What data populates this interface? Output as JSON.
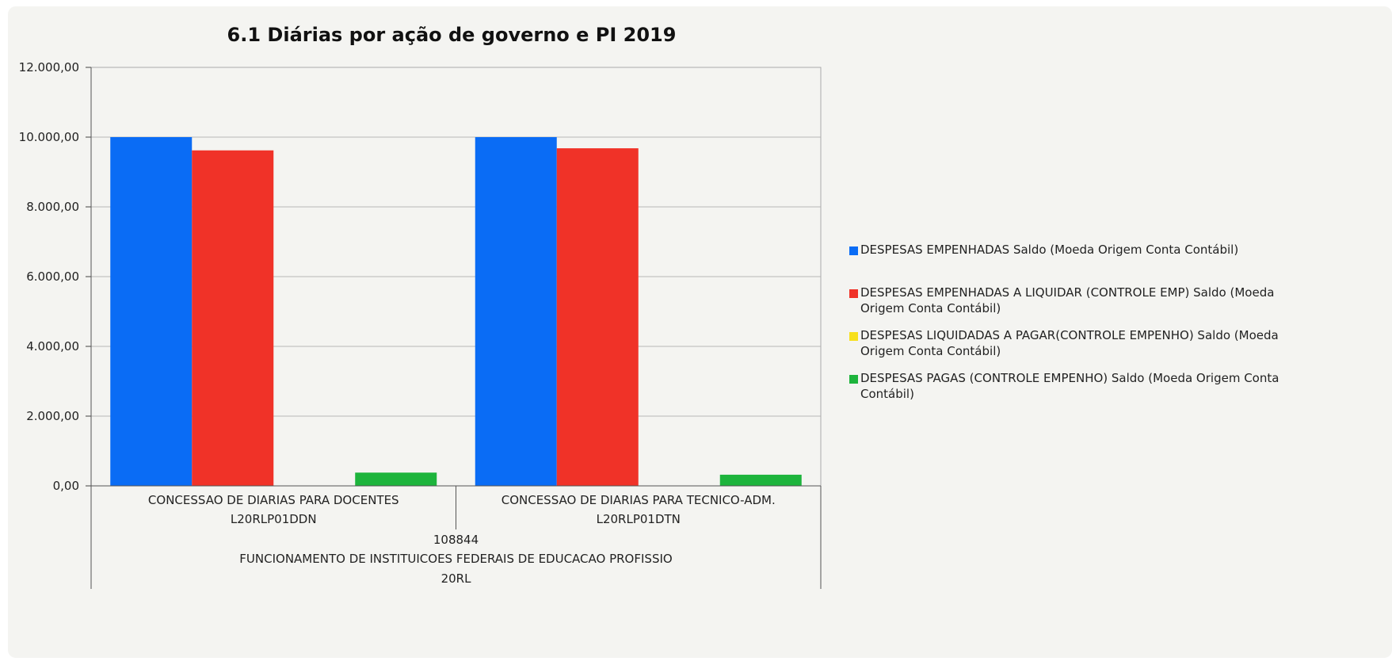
{
  "chart_data": {
    "type": "bar",
    "title": "6.1 Diárias por ação de governo e PI 2019",
    "xlabel": "",
    "ylabel": "",
    "ylim": [
      0,
      12000
    ],
    "y_ticks": [
      "0,00",
      "2.000,00",
      "4.000,00",
      "6.000,00",
      "8.000,00",
      "10.000,00",
      "12.000,00"
    ],
    "y_tick_values": [
      0,
      2000,
      4000,
      6000,
      8000,
      10000,
      12000
    ],
    "grid": true,
    "legend_position": "right",
    "categories": [
      {
        "line1": "CONCESSAO DE DIARIAS PARA DOCENTES",
        "line2": "L20RLP01DDN"
      },
      {
        "line1": "CONCESSAO DE DIARIAS PARA TECNICO-ADM.",
        "line2": "L20RLP01DTN"
      }
    ],
    "group_labels": [
      "108844",
      "FUNCIONAMENTO DE INSTITUICOES FEDERAIS DE EDUCACAO PROFISSIO",
      "20RL"
    ],
    "series": [
      {
        "name": "DESPESAS EMPENHADAS Saldo (Moeda Origem Conta Contábil)",
        "color": "#0a6cf5",
        "values": [
          10000,
          10000
        ]
      },
      {
        "name": "DESPESAS EMPENHADAS A LIQUIDAR (CONTROLE EMP) Saldo (Moeda Origem Conta Contábil)",
        "color": "#f03228",
        "values": [
          9620,
          9680
        ]
      },
      {
        "name": "DESPESAS LIQUIDADAS A PAGAR(CONTROLE EMPENHO) Saldo (Moeda Origem Conta Contábil)",
        "color": "#f7e01c",
        "values": [
          0,
          0
        ]
      },
      {
        "name": "DESPESAS PAGAS (CONTROLE EMPENHO) Saldo (Moeda Origem Conta Contábil)",
        "color": "#1db43c",
        "values": [
          380,
          320
        ]
      }
    ]
  }
}
